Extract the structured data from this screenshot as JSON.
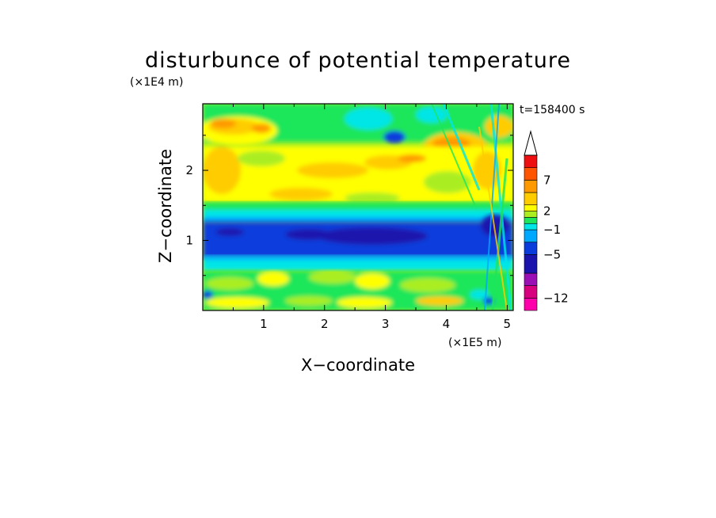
{
  "chart_data": {
    "type": "heatmap",
    "title": "disturbunce of potential temperature",
    "xlabel": "X−coordinate",
    "ylabel": "Z−coordinate",
    "x_unit": "(×1E5 m)",
    "y_unit": "(×1E4 m)",
    "time_label": "t=158400 s",
    "xlim": [
      0,
      5.1
    ],
    "ylim": [
      0,
      2.95
    ],
    "x_ticks": [
      "1",
      "2",
      "3",
      "4",
      "5"
    ],
    "y_ticks": [
      "1",
      "2"
    ],
    "x_tick_values": [
      1,
      2,
      3,
      4,
      5
    ],
    "y_tick_values": [
      1,
      2
    ],
    "grid": false,
    "colorbar": {
      "labels": [
        "7",
        "2",
        "−1",
        "−5",
        "−12"
      ],
      "label_levels": [
        7,
        2,
        -1,
        -5,
        -12
      ],
      "min": -14,
      "max": 11,
      "extend": "max",
      "levels": [
        -14,
        -12,
        -10,
        -8,
        -5,
        -3,
        -1,
        0,
        1,
        2,
        3,
        5,
        7,
        9,
        11
      ],
      "colors": [
        "#ff00aa",
        "#d7007f",
        "#9b10b4",
        "#1a14ad",
        "#0a3cdc",
        "#00a8ff",
        "#00e6e6",
        "#1ee65a",
        "#aaee22",
        "#ffff00",
        "#ffcc00",
        "#ff9900",
        "#ff5500",
        "#ee1010",
        "#ffb4b4",
        "#ffffff"
      ]
    },
    "field_description": [
      {
        "band": "z 0.0-0.55",
        "value_range": [
          -1,
          3
        ],
        "dominant": "mixed green/yellow with cyan patches, small blue spots near x=0.05 and x=4.8"
      },
      {
        "band": "z 0.6-0.85",
        "value_range": [
          -3,
          -1
        ],
        "dominant": "cyan"
      },
      {
        "band": "z 0.85-1.3",
        "value_range": [
          -8,
          -5
        ],
        "dominant": "blue with dark navy core around x=1.5-3.3"
      },
      {
        "band": "z 1.3-1.6",
        "value_range": [
          -1,
          1
        ],
        "dominant": "cyan to green"
      },
      {
        "band": "z 1.6-2.4",
        "value_range": [
          1,
          3
        ],
        "dominant": "yellow with orange streaks near x=2.2-3.2"
      },
      {
        "band": "z 2.4-2.95",
        "value_range": [
          0,
          5
        ],
        "dominant": "green/yellow with orange patches at x=0.1-1.2 and x=3.8-4.7, blue spot at x=3.1 z=2.65"
      }
    ]
  }
}
